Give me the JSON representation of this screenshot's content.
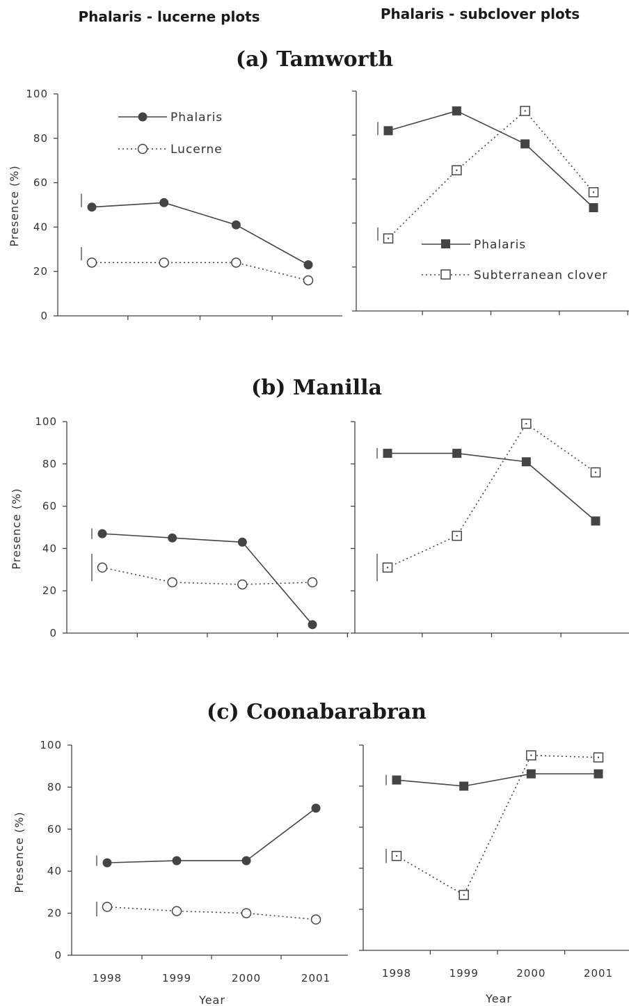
{
  "figure": {
    "column_titles": [
      "Phalaris - lucerne plots",
      "Phalaris - subclover plots"
    ],
    "site_titles": [
      "(a) Tamworth",
      "(b) Manilla",
      "(c) Coonabarabran"
    ],
    "ylabel": "Presence (%)",
    "xlabel": "Year",
    "x_ticks": [
      "1998",
      "1999",
      "2000",
      "2001"
    ],
    "y_ticks": [
      "0",
      "20",
      "40",
      "60",
      "80",
      "100"
    ]
  },
  "chart_data": [
    {
      "type": "line",
      "panel": "Tamworth - phalaris-lucerne plots",
      "x": [
        "1998",
        "1999",
        "2000",
        "2001"
      ],
      "series": [
        {
          "name": "Phalaris",
          "style": "solid",
          "marker": "filled-circle",
          "values": [
            49,
            51,
            41,
            23
          ]
        },
        {
          "name": "Lucerne",
          "style": "dotted",
          "marker": "open-circle",
          "values": [
            24,
            24,
            24,
            16
          ]
        }
      ],
      "lsd": [
        {
          "y": 52,
          "len": 6
        },
        {
          "y": 28,
          "len": 6
        }
      ],
      "ylim": [
        0,
        100
      ],
      "ylabel": "Presence (%)",
      "legend_position": "upper-left"
    },
    {
      "type": "line",
      "panel": "Tamworth - phalaris-subclover plots",
      "x": [
        "1998",
        "1999",
        "2000",
        "2001"
      ],
      "series": [
        {
          "name": "Phalaris",
          "style": "solid",
          "marker": "filled-square",
          "values": [
            82,
            91,
            76,
            47
          ]
        },
        {
          "name": "Subterranean clover",
          "style": "dotted",
          "marker": "open-square",
          "values": [
            33,
            64,
            91,
            54
          ]
        }
      ],
      "lsd": [
        {
          "y": 83,
          "len": 6
        },
        {
          "y": 35,
          "len": 6
        }
      ],
      "ylim": [
        0,
        100
      ],
      "legend_position": "lower-right"
    },
    {
      "type": "line",
      "panel": "Manilla - phalaris-lucerne plots",
      "x": [
        "1998",
        "1999",
        "2000",
        "2001"
      ],
      "series": [
        {
          "name": "Phalaris",
          "style": "solid",
          "marker": "filled-circle",
          "values": [
            47,
            45,
            43,
            4
          ]
        },
        {
          "name": "Lucerne",
          "style": "dotted",
          "marker": "open-circle",
          "values": [
            31,
            24,
            23,
            24
          ]
        }
      ],
      "lsd": [
        {
          "y": 47,
          "len": 5
        },
        {
          "y": 31,
          "len": 13
        }
      ],
      "ylim": [
        0,
        100
      ],
      "ylabel": "Presence (%)"
    },
    {
      "type": "line",
      "panel": "Manilla - phalaris-subclover plots",
      "x": [
        "1998",
        "1999",
        "2000",
        "2001"
      ],
      "series": [
        {
          "name": "Phalaris",
          "style": "solid",
          "marker": "filled-square",
          "values": [
            85,
            85,
            81,
            53
          ]
        },
        {
          "name": "Subterranean clover",
          "style": "dotted",
          "marker": "open-square",
          "values": [
            31,
            46,
            99,
            76
          ]
        }
      ],
      "lsd": [
        {
          "y": 85,
          "len": 5
        },
        {
          "y": 31,
          "len": 13
        }
      ],
      "ylim": [
        0,
        100
      ]
    },
    {
      "type": "line",
      "panel": "Coonabarabran - phalaris-lucerne plots",
      "x": [
        "1998",
        "1999",
        "2000",
        "2001"
      ],
      "series": [
        {
          "name": "Phalaris",
          "style": "solid",
          "marker": "filled-circle",
          "values": [
            44,
            45,
            45,
            70
          ]
        },
        {
          "name": "Lucerne",
          "style": "dotted",
          "marker": "open-circle",
          "values": [
            23,
            21,
            20,
            17
          ]
        }
      ],
      "lsd": [
        {
          "y": 45,
          "len": 5
        },
        {
          "y": 22,
          "len": 7
        }
      ],
      "ylim": [
        0,
        100
      ],
      "ylabel": "Presence (%)",
      "xlabel": "Year"
    },
    {
      "type": "line",
      "panel": "Coonabarabran - phalaris-subclover plots",
      "x": [
        "1998",
        "1999",
        "2000",
        "2001"
      ],
      "series": [
        {
          "name": "Phalaris",
          "style": "solid",
          "marker": "filled-square",
          "values": [
            83,
            80,
            86,
            86
          ]
        },
        {
          "name": "Subterranean clover",
          "style": "dotted",
          "marker": "open-square",
          "values": [
            46,
            27,
            95,
            94
          ]
        }
      ],
      "lsd": [
        {
          "y": 83,
          "len": 5
        },
        {
          "y": 46,
          "len": 7
        }
      ],
      "ylim": [
        0,
        100
      ],
      "xlabel": "Year"
    }
  ],
  "colors": {
    "ink": "#444444",
    "marker_fill": "#444444",
    "open_fill": "#ffffff"
  }
}
